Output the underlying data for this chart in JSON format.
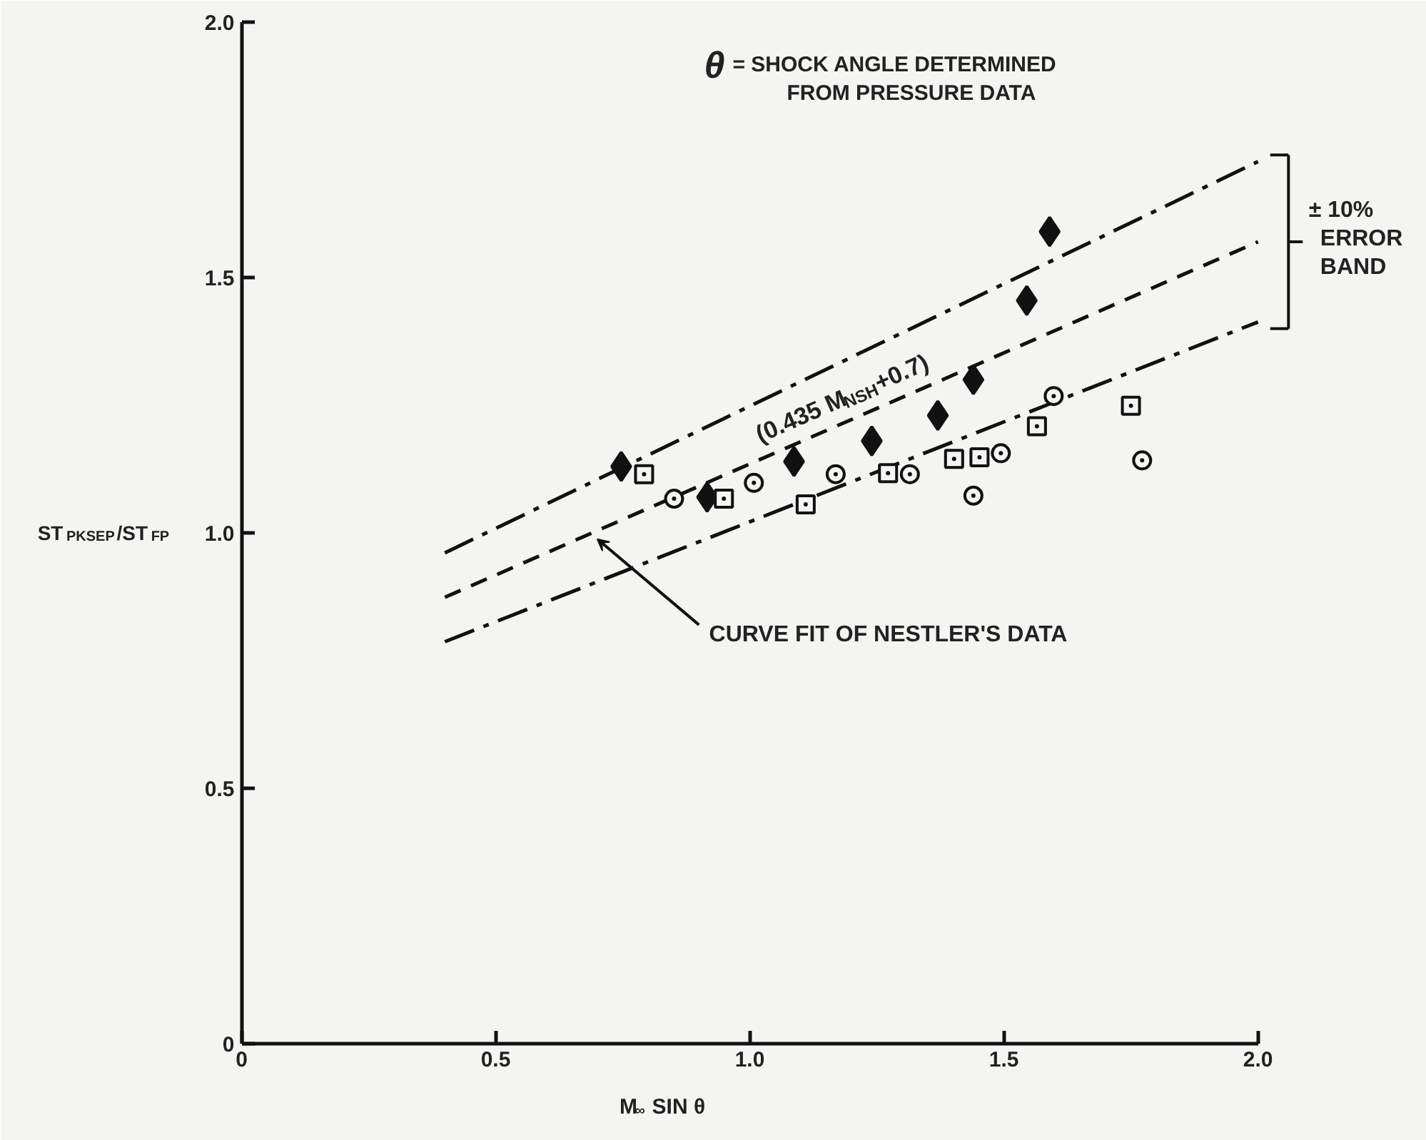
{
  "chart_data": {
    "type": "scatter",
    "xlabel": "M$_{∞}$ SIN θ",
    "ylabel": "ST$_{PKSEP}$/ST$_{FP}$",
    "xlim": [
      0,
      2.0
    ],
    "ylim": [
      0,
      2.0
    ],
    "xticks": [
      0,
      0.5,
      {
        "value": 1,
        "label": "1.0"
      },
      1.5,
      {
        "value": 2,
        "label": "2.0"
      }
    ],
    "yticks": [
      0,
      0.5,
      {
        "value": 1,
        "label": "1.0"
      },
      1.5,
      {
        "value": 2,
        "label": "2.0"
      }
    ],
    "grid": false,
    "annotations": [
      "θ = SHOCK ANGLE DETERMINED\nFROM PRESSURE DATA",
      {
        "text": "(0.435 M$_{NSH}$+0.7)",
        "x": 1.2,
        "y": 1.222
      },
      {
        "text": "± 10%\nERROR\nBAND",
        "x": 2.0,
        "y": 1.57
      },
      {
        "text": "CURVE FIT OF NESTLER'S DATA",
        "x": 0.7,
        "y": 1.0
      }
    ],
    "series": [
      {
        "type": "line",
        "color": "#111111",
        "line_style": "dashdot",
        "x": [
          0.4,
          2.0
        ],
        "values": [
          0.961,
          1.727
        ]
      },
      {
        "type": "line",
        "color": "#111111",
        "line_style": "dashed",
        "x": [
          0.4,
          2.0
        ],
        "values": [
          0.874,
          1.57
        ]
      },
      {
        "type": "line",
        "color": "#111111",
        "line_style": "dashdot",
        "x": [
          0.4,
          2.0
        ],
        "values": [
          0.787,
          1.413
        ]
      },
      {
        "type": "scatter",
        "color": "#111111",
        "marker": "diamond",
        "x": [
          0.747,
          0.916,
          1.087,
          1.24,
          1.37,
          1.44,
          1.545,
          1.59
        ],
        "values": [
          1.13,
          1.07,
          1.14,
          1.18,
          1.23,
          1.3,
          1.455,
          1.59
        ]
      },
      {
        "type": "scatter",
        "color": "#111111",
        "marker": "circle",
        "x": [
          0.851,
          1.008,
          1.169,
          1.315,
          1.44,
          1.494,
          1.598,
          1.772
        ],
        "values": [
          1.067,
          1.098,
          1.115,
          1.115,
          1.073,
          1.156,
          1.268,
          1.142
        ]
      },
      {
        "type": "scatter",
        "color": "#111111",
        "marker": "square",
        "x": [
          0.792,
          0.949,
          1.11,
          1.272,
          1.402,
          1.452,
          1.565,
          1.75
        ],
        "values": [
          1.115,
          1.067,
          1.056,
          1.117,
          1.145,
          1.148,
          1.209,
          1.249
        ]
      }
    ]
  }
}
